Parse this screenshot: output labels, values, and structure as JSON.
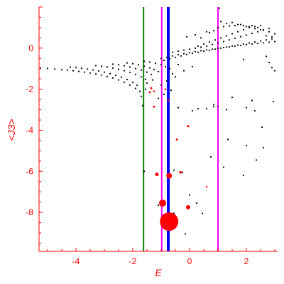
{
  "chart_data": {
    "type": "scatter",
    "title": "",
    "xlabel": "E",
    "ylabel": "<J3>",
    "xlim": [
      -5.3,
      3.1
    ],
    "ylim": [
      -9.9,
      2.0
    ],
    "x_ticks": [
      -4,
      -2,
      0,
      2
    ],
    "x_tick_labels": [
      "-4",
      "-2",
      "0",
      "2"
    ],
    "y_ticks": [
      0,
      -2,
      -4,
      -6,
      -8
    ],
    "y_tick_labels": [
      "0",
      "-2",
      "-4",
      "-6",
      "-8"
    ],
    "grid": false,
    "axis_color": "#ff0000",
    "vertical_lines": [
      {
        "x": -1.62,
        "color": "#008000",
        "width": 2
      },
      {
        "x": -0.98,
        "color": "#ff00ff",
        "width": 2
      },
      {
        "x": -0.75,
        "color": "#0000ff",
        "width": 4
      },
      {
        "x": 1.0,
        "color": "#ff00ff",
        "width": 2
      }
    ],
    "series": [
      {
        "color": "#000000",
        "points": [
          [
            -5.25,
            -0.97
          ],
          [
            -5.0,
            -0.99
          ],
          [
            -4.75,
            -1.02
          ],
          [
            -4.5,
            -1.05
          ],
          [
            -4.3,
            -1.07
          ],
          [
            -4.1,
            -1.1
          ],
          [
            -3.9,
            -1.13
          ],
          [
            -3.7,
            -1.17
          ],
          [
            -3.5,
            -1.21
          ],
          [
            -3.3,
            -1.26
          ],
          [
            -3.1,
            -1.31
          ],
          [
            -2.9,
            -1.38
          ],
          [
            -2.7,
            -1.45
          ],
          [
            -2.5,
            -1.55
          ],
          [
            -2.3,
            -1.66
          ],
          [
            -2.1,
            -1.8
          ],
          [
            -1.9,
            -1.96
          ],
          [
            -1.75,
            -2.1
          ],
          [
            -4.2,
            -0.92
          ],
          [
            -4.0,
            -0.95
          ],
          [
            -3.8,
            -0.98
          ],
          [
            -3.6,
            -1.02
          ],
          [
            -3.4,
            -1.06
          ],
          [
            -3.2,
            -1.11
          ],
          [
            -3.0,
            -1.17
          ],
          [
            -2.8,
            -1.24
          ],
          [
            -2.6,
            -1.32
          ],
          [
            -2.4,
            -1.42
          ],
          [
            -2.2,
            -1.53
          ],
          [
            -2.0,
            -1.67
          ],
          [
            -1.85,
            -1.8
          ],
          [
            -3.3,
            -0.85
          ],
          [
            -3.1,
            -0.88
          ],
          [
            -2.9,
            -0.92
          ],
          [
            -2.7,
            -0.97
          ],
          [
            -2.5,
            -1.03
          ],
          [
            -2.3,
            -1.1
          ],
          [
            -2.1,
            -1.18
          ],
          [
            -1.9,
            -1.28
          ],
          [
            -1.7,
            -1.4
          ],
          [
            -1.55,
            -1.52
          ],
          [
            -2.7,
            -0.78
          ],
          [
            -2.5,
            -0.81
          ],
          [
            -2.3,
            -0.86
          ],
          [
            -2.1,
            -0.92
          ],
          [
            -1.9,
            -0.99
          ],
          [
            -1.7,
            -1.07
          ],
          [
            -1.5,
            -1.17
          ],
          [
            -1.35,
            -1.28
          ],
          [
            -2.2,
            -0.72
          ],
          [
            -2.0,
            -0.76
          ],
          [
            -1.8,
            -0.81
          ],
          [
            -1.6,
            -0.88
          ],
          [
            -1.4,
            -0.96
          ],
          [
            -1.25,
            -1.04
          ],
          [
            -1.1,
            -1.14
          ],
          [
            -1.6,
            -0.64
          ],
          [
            -1.4,
            -0.68
          ],
          [
            -1.2,
            -0.74
          ],
          [
            -1.0,
            -0.81
          ],
          [
            -0.85,
            -0.9
          ],
          [
            -0.7,
            -1.0
          ],
          [
            -1.0,
            -0.5
          ],
          [
            -0.8,
            -0.45
          ],
          [
            -0.6,
            -0.38
          ],
          [
            -0.4,
            -0.32
          ],
          [
            -0.2,
            -0.27
          ],
          [
            0.0,
            -0.22
          ],
          [
            0.2,
            -0.17
          ],
          [
            0.4,
            -0.13
          ],
          [
            0.6,
            -0.09
          ],
          [
            0.8,
            -0.05
          ],
          [
            1.0,
            -0.01
          ],
          [
            1.2,
            0.03
          ],
          [
            1.4,
            0.06
          ],
          [
            1.6,
            0.1
          ],
          [
            1.8,
            0.13
          ],
          [
            2.0,
            0.17
          ],
          [
            2.2,
            0.2
          ],
          [
            2.4,
            0.23
          ],
          [
            2.6,
            0.26
          ],
          [
            2.8,
            0.29
          ],
          [
            3.0,
            0.32
          ],
          [
            -0.9,
            -0.6
          ],
          [
            -0.7,
            -0.52
          ],
          [
            -0.5,
            -0.45
          ],
          [
            -0.3,
            -0.38
          ],
          [
            -0.1,
            -0.31
          ],
          [
            0.1,
            -0.25
          ],
          [
            0.3,
            -0.2
          ],
          [
            0.5,
            -0.15
          ],
          [
            0.7,
            -0.1
          ],
          [
            0.9,
            -0.05
          ],
          [
            1.1,
            0.0
          ],
          [
            1.3,
            0.05
          ],
          [
            1.5,
            0.1
          ],
          [
            1.7,
            0.15
          ],
          [
            1.9,
            0.2
          ],
          [
            2.1,
            0.25
          ],
          [
            2.3,
            0.3
          ],
          [
            2.5,
            0.35
          ],
          [
            2.7,
            0.4
          ],
          [
            2.9,
            0.45
          ],
          [
            -0.6,
            -0.2
          ],
          [
            -0.4,
            -0.15
          ],
          [
            -0.2,
            -0.1
          ],
          [
            0.0,
            -0.05
          ],
          [
            0.2,
            0.0
          ],
          [
            0.4,
            0.05
          ],
          [
            0.6,
            0.1
          ],
          [
            0.8,
            0.18
          ],
          [
            1.0,
            0.25
          ],
          [
            1.2,
            0.32
          ],
          [
            1.4,
            0.4
          ],
          [
            1.6,
            0.48
          ],
          [
            1.8,
            0.56
          ],
          [
            2.0,
            0.64
          ],
          [
            2.2,
            0.72
          ],
          [
            2.4,
            0.8
          ],
          [
            2.6,
            0.88
          ],
          [
            2.8,
            0.96
          ],
          [
            0.3,
            0.1
          ],
          [
            0.5,
            0.2
          ],
          [
            0.7,
            0.3
          ],
          [
            0.9,
            0.4
          ],
          [
            1.1,
            0.5
          ],
          [
            1.3,
            0.6
          ],
          [
            1.5,
            0.7
          ],
          [
            1.7,
            0.8
          ],
          [
            1.9,
            0.9
          ],
          [
            2.1,
            1.0
          ],
          [
            2.3,
            1.05
          ],
          [
            2.5,
            1.1
          ],
          [
            1.0,
            1.0
          ],
          [
            1.2,
            1.05
          ],
          [
            1.4,
            1.08
          ],
          [
            1.6,
            1.1
          ],
          [
            1.8,
            1.15
          ],
          [
            2.0,
            1.05
          ],
          [
            2.2,
            1.1
          ],
          [
            2.4,
            1.0
          ],
          [
            2.6,
            0.9
          ],
          [
            2.8,
            0.8
          ],
          [
            3.0,
            0.7
          ],
          [
            1.1,
            1.3
          ],
          [
            1.3,
            1.2
          ],
          [
            1.5,
            1.25
          ],
          [
            1.7,
            1.15
          ],
          [
            1.9,
            1.1
          ],
          [
            2.1,
            1.05
          ],
          [
            2.3,
            0.95
          ],
          [
            2.5,
            0.9
          ],
          [
            2.7,
            0.6
          ],
          [
            2.9,
            0.55
          ],
          [
            1.05,
            1.95
          ],
          [
            0.85,
            0.85
          ],
          [
            0.6,
            0.8
          ],
          [
            0.2,
            0.65
          ],
          [
            -0.1,
            0.55
          ],
          [
            0.4,
            0.5
          ],
          [
            0.7,
            0.75
          ],
          [
            -0.5,
            -1.4
          ],
          [
            -0.8,
            -1.6
          ],
          [
            -0.6,
            -1.25
          ],
          [
            -0.4,
            -0.8
          ],
          [
            -0.2,
            -1.1
          ],
          [
            0.1,
            -0.9
          ],
          [
            2.8,
            -0.7
          ],
          [
            2.9,
            -0.95
          ],
          [
            3.0,
            -1.1
          ],
          [
            2.7,
            -0.4
          ],
          [
            1.9,
            -0.55
          ],
          [
            -1.3,
            -1.55
          ],
          [
            -1.5,
            -1.7
          ],
          [
            -0.9,
            -2.25
          ],
          [
            -1.0,
            -1.8
          ],
          [
            -0.65,
            -2.05
          ],
          [
            -1.7,
            -2.35
          ],
          [
            -1.1,
            -2.45
          ],
          [
            -1.55,
            -2.0
          ],
          [
            -1.65,
            -2.8
          ],
          [
            1.5,
            -2.4
          ],
          [
            2.2,
            -2.55
          ],
          [
            2.95,
            -2.6
          ],
          [
            1.0,
            -2.85
          ],
          [
            0.85,
            -2.75
          ],
          [
            0.3,
            -2.95
          ],
          [
            0.85,
            -2.85
          ],
          [
            2.0,
            -2.9
          ],
          [
            2.3,
            -3.05
          ],
          [
            1.3,
            -3.0
          ],
          [
            -0.4,
            -2.9
          ],
          [
            0.1,
            -3.05
          ],
          [
            0.6,
            -2.95
          ],
          [
            2.55,
            -3.85
          ],
          [
            1.35,
            -4.45
          ],
          [
            2.0,
            -4.75
          ],
          [
            2.6,
            -4.85
          ],
          [
            0.75,
            -5.3
          ],
          [
            2.35,
            -5.45
          ],
          [
            1.2,
            -5.8
          ],
          [
            1.9,
            -6.2
          ],
          [
            -0.55,
            -5.95
          ],
          [
            -0.25,
            -6.05
          ],
          [
            0.0,
            -7.15
          ],
          [
            0.25,
            -7.55
          ],
          [
            0.45,
            -8.05
          ],
          [
            -0.55,
            -8.05
          ],
          [
            -0.15,
            -9.05
          ],
          [
            -1.1,
            -7.65
          ],
          [
            -1.6,
            -6.0
          ]
        ]
      },
      {
        "color": "#ff0000",
        "points": [
          [
            -0.72,
            -8.45,
            13
          ],
          [
            -0.95,
            -7.55,
            5
          ],
          [
            -0.72,
            -6.22,
            4
          ],
          [
            -1.15,
            -6.15,
            2.5
          ],
          [
            -0.05,
            -7.75,
            3
          ],
          [
            -0.32,
            -6.05,
            1.8
          ],
          [
            -0.05,
            -3.8,
            1.6
          ],
          [
            -0.45,
            -4.45,
            1.4
          ],
          [
            0.6,
            -6.75,
            1.2
          ],
          [
            -1.35,
            -1.95,
            1.5
          ],
          [
            -1.4,
            -2.15,
            1.4
          ],
          [
            -1.25,
            -2.1,
            1.3
          ],
          [
            -0.85,
            -2.0,
            1.3
          ],
          [
            -1.25,
            -2.85,
            1.4
          ],
          [
            -0.75,
            -2.55,
            1.3
          ]
        ]
      }
    ]
  }
}
